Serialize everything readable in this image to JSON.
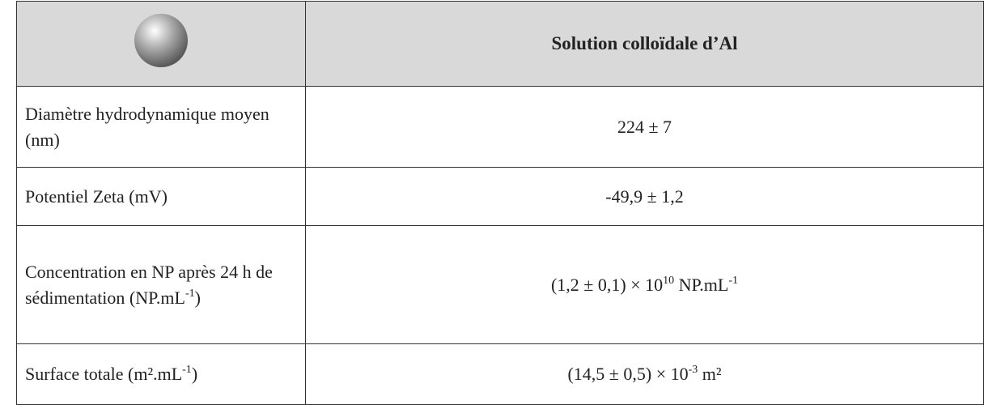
{
  "table": {
    "header": [
      {
        "text": "Solution colloïdale d’Al"
      }
    ],
    "rows": [
      [
        [
          {
            "text": "Diamètre hydrodynamique moyen (nm)"
          }
        ],
        [
          {
            "text": "224 ± 7"
          }
        ]
      ],
      [
        [
          {
            "text": "Potentiel Zeta (mV)"
          }
        ],
        [
          {
            "text": "-49,9 ± 1,2"
          }
        ]
      ],
      [
        [
          {
            "text": "Concentration en NP après 24 h de sédimentation (NP.mL"
          },
          {
            "sup": "-1"
          },
          {
            "text": ")"
          }
        ],
        [
          {
            "text": "(1,2 ± 0,1) × 10"
          },
          {
            "sup": "10"
          },
          {
            "text": " NP.mL"
          },
          {
            "sup": "-1"
          }
        ]
      ],
      [
        [
          {
            "text": "Surface totale (m².mL"
          },
          {
            "sup": "-1"
          },
          {
            "text": ")"
          }
        ],
        [
          {
            "text": "(14,5 ± 0,5) × 10"
          },
          {
            "sup": "-3"
          },
          {
            "text": " m²"
          }
        ]
      ]
    ]
  }
}
